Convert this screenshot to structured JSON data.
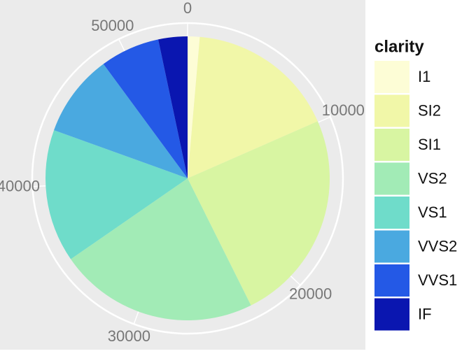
{
  "chart_data": {
    "type": "pie",
    "legend_title": "clarity",
    "categories": [
      "I1",
      "SI2",
      "SI1",
      "VS2",
      "VS1",
      "VVS2",
      "VVS1",
      "IF"
    ],
    "values": [
      741,
      9194,
      13065,
      12258,
      8171,
      5066,
      3655,
      1790
    ],
    "colors": [
      "#fdfdd6",
      "#f1f7a8",
      "#d8f5a2",
      "#a2ebb6",
      "#6fdcca",
      "#4aa9e0",
      "#2459e6",
      "#0a16b0"
    ],
    "xlim": [
      0,
      53940
    ],
    "xticks": [
      0,
      10000,
      20000,
      30000,
      40000,
      50000
    ],
    "grid": true
  }
}
